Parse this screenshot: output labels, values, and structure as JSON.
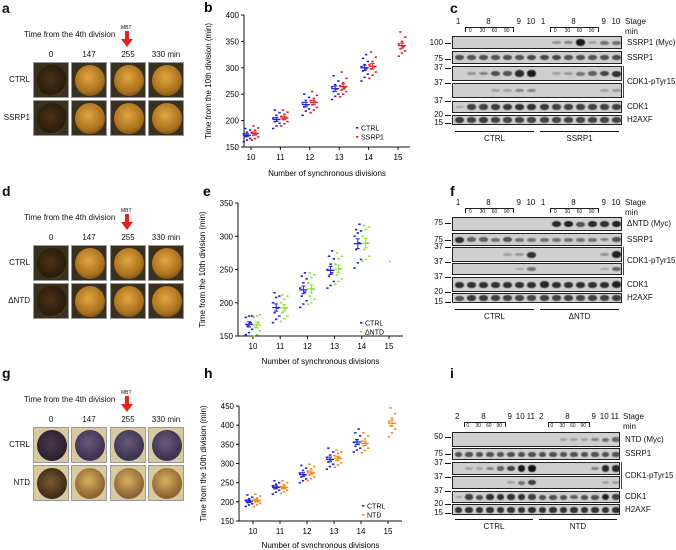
{
  "photo_panels": [
    {
      "label": "a",
      "title": "Time from the 4th division",
      "mbt": "MBT",
      "time_points": [
        "0",
        "147",
        "255",
        "330 min"
      ],
      "rows": [
        "CTRL",
        "SSRP1"
      ],
      "style": "dark"
    },
    {
      "label": "d",
      "title": "Time from the 4th division",
      "mbt": "MBT",
      "time_points": [
        "0",
        "147",
        "255",
        "330 min"
      ],
      "rows": [
        "CTRL",
        "ΔNTD"
      ],
      "style": "dark"
    },
    {
      "label": "g",
      "title": "Time from the 4th division",
      "mbt": "MBT",
      "time_points": [
        "0",
        "147",
        "255",
        "330 min"
      ],
      "rows": [
        "CTRL",
        "NTD"
      ],
      "style": "light"
    }
  ],
  "arrow_color": "#e8211c",
  "chart_data": [
    {
      "label": "b",
      "type": "scatter",
      "xlabel": "Number of synchronous divisions",
      "ylabel": "Time from the 10th division (min)",
      "categories": [
        "10",
        "11",
        "12",
        "13",
        "14",
        "15"
      ],
      "ylim": [
        150,
        400
      ],
      "yticks": [
        150,
        200,
        250,
        300,
        350,
        400
      ],
      "grid": false,
      "legend": "bottom-right",
      "series": [
        {
          "name": "CTRL",
          "color": "#2323d0",
          "values": [
            [
              160,
              163,
              166,
              170,
              172,
              175,
              178,
              182,
              185
            ],
            [
              185,
              190,
              195,
              198,
              202,
              205,
              210,
              215,
              220
            ],
            [
              210,
              218,
              222,
              226,
              230,
              234,
              238,
              244,
              250
            ],
            [
              240,
              246,
              250,
              255,
              260,
              264,
              268,
              275,
              285
            ],
            [
              275,
              282,
              288,
              294,
              298,
              302,
              306,
              312,
              318,
              325
            ],
            []
          ]
        },
        {
          "name": "SSRP1",
          "color": "#e3202a",
          "values": [
            [
              163,
              166,
              169,
              172,
              175,
              178,
              182,
              186,
              190
            ],
            [
              190,
              194,
              198,
              202,
              205,
              208,
              212,
              216,
              220
            ],
            [
              215,
              220,
              225,
              230,
              235,
              238,
              242,
              248,
              255
            ],
            [
              245,
              250,
              255,
              258,
              262,
              266,
              272,
              280,
              292
            ],
            [
              280,
              286,
              292,
              298,
              302,
              306,
              312,
              320,
              330
            ],
            [
              322,
              328,
              332,
              336,
              340,
              345,
              350,
              358,
              368
            ]
          ]
        }
      ]
    },
    {
      "label": "e",
      "type": "scatter",
      "xlabel": "Number of synchronous divisions",
      "ylabel": "Time from the 10th division (min)",
      "categories": [
        "10",
        "11",
        "12",
        "13",
        "14",
        "15"
      ],
      "ylim": [
        150,
        350
      ],
      "yticks": [
        150,
        200,
        250,
        300,
        350
      ],
      "grid": false,
      "legend": "bottom-right",
      "series": [
        {
          "name": "CTRL",
          "color": "#2323d0",
          "values": [
            [
              152,
              155,
              160,
              165,
              170,
              178,
              180,
              180
            ],
            [
              170,
              175,
              180,
              185,
              192,
              200,
              208,
              210,
              215
            ],
            [
              193,
              198,
              203,
              210,
              216,
              222,
              230,
              236,
              240,
              245
            ],
            [
              222,
              226,
              232,
              240,
              245,
              250,
              258,
              266,
              270,
              278
            ],
            [
              252,
              260,
              265,
              280,
              290,
              300,
              305,
              308,
              310,
              318
            ],
            []
          ]
        },
        {
          "name": "ΔNTD",
          "color": "#8ee03a",
          "values": [
            [
              150,
              152,
              158,
              163,
              170,
              178,
              180,
              182
            ],
            [
              172,
              176,
              180,
              185,
              191,
              200,
              205,
              210,
              212
            ],
            [
              198,
              200,
              205,
              210,
              220,
              230,
              238,
              242,
              245
            ],
            [
              228,
              232,
              236,
              242,
              251,
              258,
              266,
              270,
              275
            ],
            [
              262,
              265,
              270,
              280,
              290,
              300,
              310,
              314,
              316
            ],
            [
              262
            ]
          ]
        }
      ]
    },
    {
      "label": "h",
      "type": "scatter",
      "xlabel": "Number of synchronous divisions",
      "ylabel": "Time from the 10th division (min)",
      "categories": [
        "10",
        "11",
        "12",
        "13",
        "14",
        "15"
      ],
      "ylim": [
        150,
        450
      ],
      "yticks": [
        150,
        200,
        250,
        300,
        350,
        400,
        450
      ],
      "grid": false,
      "legend": "bottom-right",
      "series": [
        {
          "name": "CTRL",
          "color": "#2323d0",
          "values": [
            [
              188,
              192,
              195,
              198,
              200,
              204,
              208,
              212,
              218
            ],
            [
              220,
              225,
              230,
              235,
              238,
              242,
              246,
              250,
              255
            ],
            [
              250,
              255,
              260,
              265,
              270,
              275,
              282,
              288,
              295
            ],
            [
              285,
              292,
              298,
              304,
              310,
              316,
              322,
              330,
              340
            ],
            [
              330,
              335,
              340,
              345,
              350,
              355,
              362,
              372,
              380,
              390
            ],
            []
          ]
        },
        {
          "name": "NTD",
          "color": "#f08a24",
          "values": [
            [
              188,
              192,
              196,
              200,
              202,
              206,
              210,
              215,
              220
            ],
            [
              222,
              226,
              230,
              234,
              237,
              240,
              245,
              250,
              255
            ],
            [
              255,
              260,
              265,
              270,
              275,
              280,
              286,
              292,
              298
            ],
            [
              290,
              296,
              302,
              308,
              315,
              320,
              326,
              330,
              335
            ],
            [
              328,
              334,
              340,
              346,
              352,
              358,
              364,
              372,
              380
            ],
            [
              370,
              380,
              390,
              398,
              405,
              410,
              418,
              430,
              445
            ]
          ]
        }
      ]
    }
  ],
  "blots": [
    {
      "label": "c",
      "stage_word": "Stage",
      "min_word": "min",
      "groups": [
        "CTRL",
        "SSRP1"
      ],
      "lanes": [
        {
          "stage": "1"
        },
        {
          "stage": "8",
          "min": "0"
        },
        {
          "stage": "8",
          "min": "30"
        },
        {
          "stage": "8",
          "min": "60"
        },
        {
          "stage": "8",
          "min": "90"
        },
        {
          "stage": "9"
        },
        {
          "stage": "10"
        }
      ],
      "markers": [
        "100",
        "75",
        "37",
        "37",
        "37",
        "20",
        "15"
      ],
      "rows": [
        {
          "label": "SSRP1 (Myc)",
          "bands": [
            0,
            0,
            0,
            0,
            0,
            0,
            0,
            0,
            0.2,
            0.3,
            0.95,
            0.1,
            0.4,
            0.4
          ]
        },
        {
          "label": "SSRP1",
          "bands": [
            0.6,
            0.6,
            0.6,
            0.6,
            0.6,
            0.6,
            0.65,
            0.65,
            0.65,
            0.6,
            0.6,
            0.6,
            0.6,
            0.65
          ]
        },
        {
          "label": "CDK1-pTyr15",
          "bands": [
            0,
            0.2,
            0.3,
            0.6,
            0.6,
            0.85,
            0.95,
            0,
            0.1,
            0.15,
            0.4,
            0.5,
            0.7,
            0.8
          ]
        },
        {
          "label": null,
          "bands": [
            0,
            0,
            0,
            0.1,
            0.1,
            0.3,
            0.3,
            0,
            0,
            0,
            0,
            0,
            0.1,
            0.15
          ]
        },
        {
          "label": "CDK1",
          "bands": [
            0.1,
            0.7,
            0.7,
            0.75,
            0.75,
            0.8,
            0.8,
            0.75,
            0.7,
            0.7,
            0.7,
            0.7,
            0.7,
            0.7
          ]
        },
        {
          "label": "H2AXF",
          "bands": [
            0.75,
            0.7,
            0.75,
            0.7,
            0.7,
            0.7,
            0.7,
            0.7,
            0.7,
            0.7,
            0.7,
            0.7,
            0.7,
            0.7
          ]
        }
      ]
    },
    {
      "label": "f",
      "stage_word": "Stage",
      "min_word": "min",
      "groups": [
        "CTRL",
        "ΔNTD"
      ],
      "lanes": [
        {
          "stage": "1"
        },
        {
          "stage": "8",
          "min": "0"
        },
        {
          "stage": "8",
          "min": "30"
        },
        {
          "stage": "8",
          "min": "60"
        },
        {
          "stage": "8",
          "min": "90"
        },
        {
          "stage": "9"
        },
        {
          "stage": "10"
        }
      ],
      "markers": [
        "75",
        "75",
        "37",
        "37",
        "37",
        "20",
        "15"
      ],
      "rows": [
        {
          "label": "ΔNTD (Myc)",
          "bands": [
            0,
            0,
            0,
            0,
            0,
            0,
            0,
            0,
            0.85,
            0.9,
            0.6,
            0.85,
            0.8,
            0.9
          ]
        },
        {
          "label": "SSRP1",
          "bands": [
            0.8,
            0.5,
            0.5,
            0.4,
            0.6,
            0.4,
            0.4,
            0.4,
            0.4,
            0.4,
            0.4,
            0.4,
            0.3,
            0.6
          ]
        },
        {
          "label": "CDK1-pTyr15",
          "bands": [
            0,
            0,
            0,
            0,
            0.1,
            0.15,
            0.8,
            0,
            0,
            0,
            0,
            0,
            0.2,
            0.9
          ]
        },
        {
          "label": null,
          "bands": [
            0,
            0,
            0,
            0,
            0,
            0.1,
            0.4,
            0,
            0,
            0,
            0,
            0,
            0.1,
            0.5
          ]
        },
        {
          "label": "CDK1",
          "bands": [
            0.8,
            0.8,
            0.8,
            0.8,
            0.8,
            0.8,
            0.8,
            0.85,
            0.8,
            0.8,
            0.8,
            0.8,
            0.8,
            0.9
          ]
        },
        {
          "label": "H2AXF",
          "bands": [
            0.6,
            0.75,
            0.75,
            0.7,
            0.7,
            0.65,
            0.65,
            0.7,
            0.7,
            0.7,
            0.65,
            0.7,
            0.7,
            0.7
          ]
        }
      ]
    },
    {
      "label": "i",
      "stage_word": "Stage",
      "min_word": "min",
      "groups": [
        "CTRL",
        "NTD"
      ],
      "lanes": [
        {
          "stage": "2"
        },
        {
          "stage": "8",
          "min": "0"
        },
        {
          "stage": "8",
          "min": "30"
        },
        {
          "stage": "8",
          "min": "60"
        },
        {
          "stage": "8",
          "min": "90"
        },
        {
          "stage": "9"
        },
        {
          "stage": "10"
        },
        {
          "stage": "11"
        }
      ],
      "markers": [
        "50",
        "75",
        "37",
        "37",
        "37",
        "20",
        "15"
      ],
      "rows": [
        {
          "label": "NTD (Myc)",
          "bands": [
            0,
            0,
            0,
            0,
            0,
            0,
            0,
            0,
            0,
            0,
            0.1,
            0.1,
            0.1,
            0.3,
            0.4,
            0.45
          ]
        },
        {
          "label": "SSRP1",
          "bands": [
            0.6,
            0.6,
            0.6,
            0.6,
            0.6,
            0.6,
            0.6,
            0.6,
            0.6,
            0.6,
            0.6,
            0.6,
            0.6,
            0.6,
            0.6,
            0.6
          ]
        },
        {
          "label": "CDK1-pTyr15",
          "bands": [
            0,
            0.1,
            0.1,
            0.3,
            0.5,
            0.7,
            0.95,
            1,
            0,
            0,
            0,
            0,
            0,
            0.3,
            0.85,
            0.85
          ]
        },
        {
          "label": null,
          "bands": [
            0,
            0,
            0,
            0,
            0,
            0.1,
            0.4,
            0.7,
            0,
            0,
            0,
            0,
            0,
            0,
            0.1,
            0.1
          ]
        },
        {
          "label": "CDK1",
          "bands": [
            0.1,
            0.7,
            0.6,
            0.8,
            0.8,
            0.8,
            0.8,
            0.7,
            0.6,
            0.6,
            0.6,
            0.5,
            0.6,
            0.6,
            0.9,
            0.7
          ]
        },
        {
          "label": "H2AXF",
          "bands": [
            0.8,
            0.8,
            0.8,
            0.8,
            0.8,
            0.8,
            0.8,
            0.8,
            0.8,
            0.8,
            0.8,
            0.8,
            0.8,
            0.8,
            0.8,
            0.8
          ]
        }
      ]
    }
  ]
}
